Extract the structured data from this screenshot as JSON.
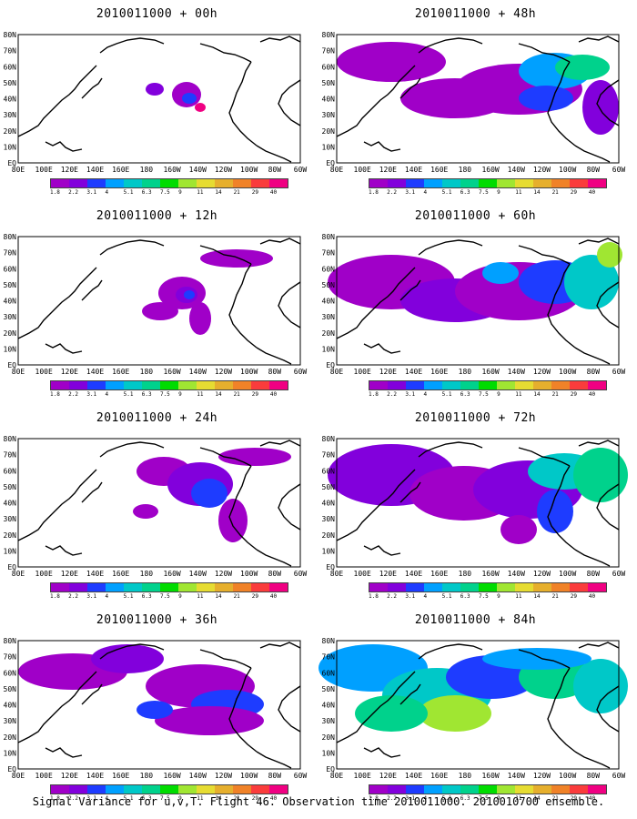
{
  "panels": [
    {
      "title": "2010011000 + 00h",
      "level": 0
    },
    {
      "title": "2010011000 + 12h",
      "level": 1
    },
    {
      "title": "2010011000 + 24h",
      "level": 2
    },
    {
      "title": "2010011000 + 36h",
      "level": 3
    },
    {
      "title": "2010011000 + 48h",
      "level": 4
    },
    {
      "title": "2010011000 + 60h",
      "level": 5
    },
    {
      "title": "2010011000 + 72h",
      "level": 6
    },
    {
      "title": "2010011000 + 84h",
      "level": 7
    }
  ],
  "lon_labels": [
    "80E",
    "100E",
    "120E",
    "140E",
    "160E",
    "180",
    "160W",
    "140W",
    "120W",
    "100W",
    "80W",
    "60W"
  ],
  "lat_labels": [
    "EQ",
    "10N",
    "20N",
    "30N",
    "40N",
    "50N",
    "60N",
    "70N",
    "80N"
  ],
  "colorbar": {
    "labels": [
      "1.8",
      "2.2",
      "3.1",
      "4",
      "5.1",
      "6.3",
      "7.5",
      "9",
      "11",
      "14",
      "21",
      "29",
      "40"
    ],
    "colors": [
      "#a000c8",
      "#8200dc",
      "#1e3cff",
      "#00a0ff",
      "#00c8c8",
      "#00d28c",
      "#00dc00",
      "#a0e632",
      "#e6dc32",
      "#e6af2d",
      "#f08228",
      "#fa3c3c",
      "#f00082"
    ]
  },
  "caption": "Signal Variance for u,v,T. Flight 46. Observation time 2010011000. 2010010700 ensemble."
}
